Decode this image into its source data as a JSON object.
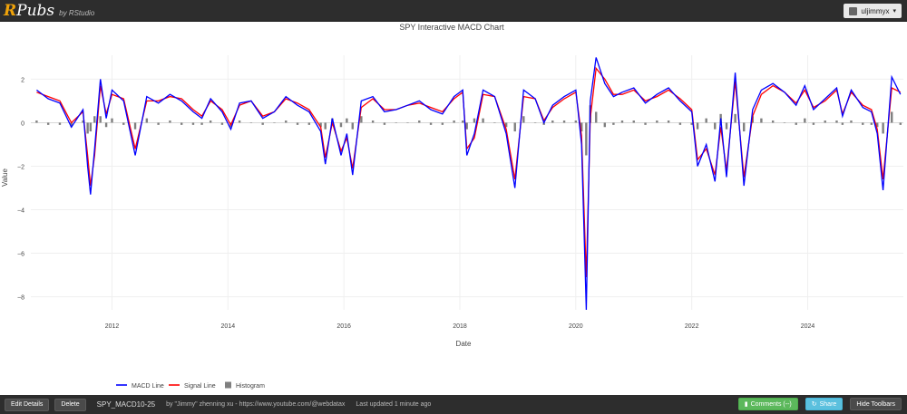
{
  "header": {
    "brand_r": "R",
    "brand_pubs": "Pubs",
    "brand_by": "by RStudio",
    "user_name": "uljimmyx",
    "user_caret": "▾"
  },
  "chart_data": {
    "type": "line",
    "title": "SPY Interactive MACD Chart",
    "xlabel": "Date",
    "ylabel": "Value",
    "x_ticks": [
      "2012",
      "2014",
      "2016",
      "2018",
      "2020",
      "2022",
      "2024"
    ],
    "y_ticks": [
      2,
      0,
      -2,
      -4,
      -6,
      -8
    ],
    "y_tick_labels": [
      "2",
      "0",
      "−2",
      "−4",
      "−6",
      "−8"
    ],
    "xlim": [
      "2010-08",
      "2025-07"
    ],
    "ylim": [
      -8.6,
      3.1
    ],
    "grid": true,
    "legend_position": "bottom",
    "series": [
      {
        "name": "MACD Line",
        "color": "#0000ff",
        "x": [
          2010.7,
          2010.9,
          2011.1,
          2011.3,
          2011.5,
          2011.58,
          2011.63,
          2011.7,
          2011.8,
          2011.9,
          2012.0,
          2012.2,
          2012.4,
          2012.6,
          2012.8,
          2013.0,
          2013.2,
          2013.4,
          2013.55,
          2013.7,
          2013.9,
          2014.05,
          2014.2,
          2014.4,
          2014.6,
          2014.8,
          2015.0,
          2015.2,
          2015.4,
          2015.6,
          2015.68,
          2015.8,
          2015.95,
          2016.05,
          2016.15,
          2016.3,
          2016.5,
          2016.7,
          2016.9,
          2017.1,
          2017.3,
          2017.5,
          2017.7,
          2017.9,
          2018.05,
          2018.12,
          2018.25,
          2018.4,
          2018.6,
          2018.8,
          2018.95,
          2019.1,
          2019.3,
          2019.45,
          2019.6,
          2019.8,
          2020.0,
          2020.1,
          2020.18,
          2020.25,
          2020.35,
          2020.5,
          2020.65,
          2020.8,
          2021.0,
          2021.2,
          2021.4,
          2021.6,
          2021.8,
          2022.0,
          2022.1,
          2022.25,
          2022.4,
          2022.5,
          2022.6,
          2022.75,
          2022.9,
          2023.05,
          2023.2,
          2023.4,
          2023.6,
          2023.8,
          2023.95,
          2024.1,
          2024.3,
          2024.5,
          2024.6,
          2024.75,
          2024.95,
          2025.1,
          2025.2,
          2025.3,
          2025.45,
          2025.6
        ],
        "values": [
          1.5,
          1.1,
          0.9,
          -0.2,
          0.6,
          -2.0,
          -3.3,
          -1.2,
          2.0,
          0.2,
          1.5,
          1.0,
          -1.5,
          1.2,
          0.9,
          1.3,
          1.0,
          0.5,
          0.2,
          1.1,
          0.5,
          -0.3,
          0.9,
          1.0,
          0.2,
          0.5,
          1.2,
          0.8,
          0.5,
          -0.4,
          -1.9,
          0.2,
          -1.5,
          -0.5,
          -2.4,
          1.0,
          1.2,
          0.5,
          0.6,
          0.8,
          1.0,
          0.6,
          0.4,
          1.2,
          1.5,
          -1.5,
          -0.5,
          1.5,
          1.2,
          -0.5,
          -3.0,
          1.5,
          1.1,
          0.0,
          0.8,
          1.2,
          1.5,
          -1.0,
          -8.6,
          1.0,
          3.0,
          1.8,
          1.2,
          1.4,
          1.6,
          0.9,
          1.3,
          1.6,
          1.0,
          0.5,
          -2.0,
          -1.0,
          -2.7,
          0.2,
          -2.5,
          2.3,
          -2.9,
          0.6,
          1.5,
          1.8,
          1.4,
          0.8,
          1.7,
          0.6,
          1.1,
          1.6,
          0.3,
          1.5,
          0.7,
          0.5,
          -0.5,
          -3.1,
          2.1,
          1.3
        ]
      },
      {
        "name": "Signal Line",
        "color": "#ff0000",
        "x": [
          2010.7,
          2010.9,
          2011.1,
          2011.3,
          2011.5,
          2011.58,
          2011.63,
          2011.7,
          2011.8,
          2011.9,
          2012.0,
          2012.2,
          2012.4,
          2012.6,
          2012.8,
          2013.0,
          2013.2,
          2013.4,
          2013.55,
          2013.7,
          2013.9,
          2014.05,
          2014.2,
          2014.4,
          2014.6,
          2014.8,
          2015.0,
          2015.2,
          2015.4,
          2015.6,
          2015.68,
          2015.8,
          2015.95,
          2016.05,
          2016.15,
          2016.3,
          2016.5,
          2016.7,
          2016.9,
          2017.1,
          2017.3,
          2017.5,
          2017.7,
          2017.9,
          2018.05,
          2018.12,
          2018.25,
          2018.4,
          2018.6,
          2018.8,
          2018.95,
          2019.1,
          2019.3,
          2019.45,
          2019.6,
          2019.8,
          2020.0,
          2020.1,
          2020.18,
          2020.25,
          2020.35,
          2020.5,
          2020.65,
          2020.8,
          2021.0,
          2021.2,
          2021.4,
          2021.6,
          2021.8,
          2022.0,
          2022.1,
          2022.25,
          2022.4,
          2022.5,
          2022.6,
          2022.75,
          2022.9,
          2023.05,
          2023.2,
          2023.4,
          2023.6,
          2023.8,
          2023.95,
          2024.1,
          2024.3,
          2024.5,
          2024.6,
          2024.75,
          2024.95,
          2025.1,
          2025.2,
          2025.3,
          2025.45,
          2025.6
        ],
        "values": [
          1.4,
          1.2,
          1.0,
          0.0,
          0.5,
          -1.5,
          -2.9,
          -1.5,
          1.7,
          0.4,
          1.3,
          1.1,
          -1.2,
          1.0,
          1.0,
          1.2,
          1.1,
          0.6,
          0.3,
          1.0,
          0.6,
          -0.1,
          0.8,
          1.0,
          0.3,
          0.5,
          1.1,
          0.9,
          0.6,
          -0.2,
          -1.6,
          0.0,
          -1.3,
          -0.7,
          -2.1,
          0.7,
          1.1,
          0.6,
          0.6,
          0.8,
          0.9,
          0.7,
          0.5,
          1.1,
          1.4,
          -1.2,
          -0.7,
          1.3,
          1.2,
          -0.3,
          -2.6,
          1.2,
          1.1,
          0.1,
          0.7,
          1.1,
          1.4,
          -0.6,
          -7.1,
          0.2,
          2.5,
          2.0,
          1.3,
          1.3,
          1.5,
          1.0,
          1.2,
          1.5,
          1.1,
          0.6,
          -1.7,
          -1.2,
          -2.4,
          -0.2,
          -2.2,
          1.9,
          -2.5,
          0.3,
          1.3,
          1.7,
          1.4,
          0.9,
          1.5,
          0.7,
          1.0,
          1.5,
          0.4,
          1.4,
          0.8,
          0.6,
          -0.3,
          -2.6,
          1.6,
          1.4
        ]
      },
      {
        "name": "Histogram",
        "color": "#7f7f7f",
        "x": [
          2010.7,
          2010.9,
          2011.1,
          2011.3,
          2011.5,
          2011.58,
          2011.63,
          2011.7,
          2011.8,
          2011.9,
          2012.0,
          2012.2,
          2012.4,
          2012.6,
          2012.8,
          2013.0,
          2013.2,
          2013.4,
          2013.55,
          2013.7,
          2013.9,
          2014.05,
          2014.2,
          2014.4,
          2014.6,
          2014.8,
          2015.0,
          2015.2,
          2015.4,
          2015.6,
          2015.68,
          2015.8,
          2015.95,
          2016.05,
          2016.15,
          2016.3,
          2016.5,
          2016.7,
          2016.9,
          2017.1,
          2017.3,
          2017.5,
          2017.7,
          2017.9,
          2018.05,
          2018.12,
          2018.25,
          2018.4,
          2018.6,
          2018.8,
          2018.95,
          2019.1,
          2019.3,
          2019.45,
          2019.6,
          2019.8,
          2020.0,
          2020.1,
          2020.18,
          2020.25,
          2020.35,
          2020.5,
          2020.65,
          2020.8,
          2021.0,
          2021.2,
          2021.4,
          2021.6,
          2021.8,
          2022.0,
          2022.1,
          2022.25,
          2022.4,
          2022.5,
          2022.6,
          2022.75,
          2022.9,
          2023.05,
          2023.2,
          2023.4,
          2023.6,
          2023.8,
          2023.95,
          2024.1,
          2024.3,
          2024.5,
          2024.6,
          2024.75,
          2024.95,
          2025.1,
          2025.2,
          2025.3,
          2025.45,
          2025.6
        ],
        "values": [
          0.1,
          -0.1,
          -0.1,
          -0.2,
          0.1,
          -0.5,
          -0.4,
          0.3,
          0.3,
          -0.2,
          0.2,
          -0.1,
          -0.3,
          0.2,
          -0.1,
          0.1,
          -0.1,
          -0.1,
          -0.1,
          0.1,
          -0.1,
          -0.2,
          0.1,
          0.0,
          -0.1,
          0.0,
          0.1,
          -0.1,
          -0.1,
          -0.2,
          -0.3,
          0.2,
          -0.2,
          0.2,
          -0.3,
          0.3,
          0.1,
          -0.1,
          0.0,
          0.0,
          0.1,
          -0.1,
          -0.1,
          0.1,
          0.1,
          -0.3,
          0.2,
          0.2,
          0.0,
          -0.2,
          -0.4,
          0.3,
          0.0,
          -0.1,
          0.1,
          0.1,
          0.1,
          -0.4,
          -1.5,
          0.8,
          0.5,
          -0.2,
          -0.1,
          0.1,
          0.1,
          -0.1,
          0.1,
          0.1,
          -0.1,
          -0.1,
          -0.3,
          0.2,
          -0.3,
          0.4,
          -0.3,
          0.4,
          -0.4,
          0.3,
          0.2,
          0.1,
          0.0,
          -0.1,
          0.2,
          -0.1,
          0.1,
          0.1,
          -0.1,
          0.1,
          -0.1,
          -0.1,
          -0.2,
          -0.5,
          0.5,
          -0.1
        ]
      }
    ]
  },
  "footer": {
    "edit_label": "Edit Details",
    "delete_label": "Delete",
    "pub_title": "SPY_MACD10-25",
    "pub_author": "by \"Jimmy\" zhenning xu - https://www.youtube.com/@webdatax",
    "pub_updated": "Last updated 1 minute ago",
    "comments_label": "Comments (--)",
    "share_label": "Share",
    "hide_label": "Hide Toolbars"
  }
}
